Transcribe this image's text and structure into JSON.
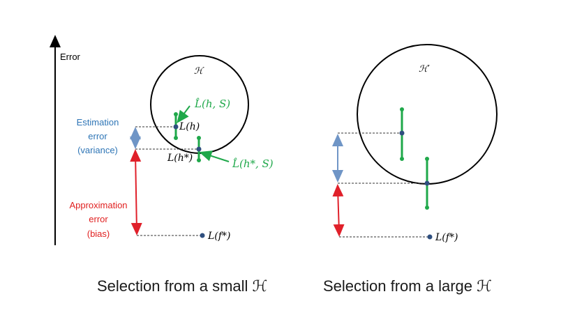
{
  "axis": {
    "label": "Error"
  },
  "left_panel": {
    "set_label": "ℋ",
    "estimation_label": [
      "Estimation",
      "error",
      "(variance)"
    ],
    "approximation_label": [
      "Approximation",
      "error",
      "(bias)"
    ],
    "L_h": "L(h)",
    "L_hstar": "L(h*)",
    "Lhat_hS": "L̂(h, S)",
    "Lhat_hstarS": "L̂(h*, S)",
    "L_fstar": "L(f*)",
    "caption": "Selection from a small ℋ"
  },
  "right_panel": {
    "set_label": "ℋ′",
    "L_fstar": "L(f*)",
    "caption": "Selection from a large ℋ"
  },
  "colors": {
    "blue_text": "#2e75b6",
    "red_text": "#e02020",
    "green": "#1fa84a",
    "blue_arrow": "#6f95c6",
    "red_arrow": "#e0202a",
    "dot": "#2f4f7f"
  }
}
